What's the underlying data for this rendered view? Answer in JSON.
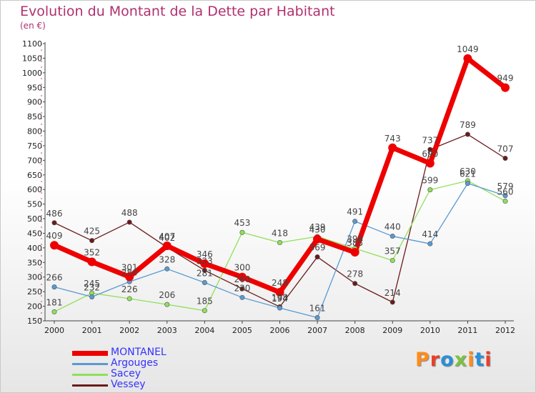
{
  "title": "Evolution du Montant de la Dette par Habitant",
  "subtitle": "(en €)",
  "logo": {
    "text": "Proxiti",
    "colors": [
      "#ff8c1a",
      "#e8402a",
      "#2a8fd8",
      "#7cc242",
      "#ff8c1a",
      "#2a8fd8",
      "#e8402a"
    ]
  },
  "chart_data": {
    "type": "line",
    "title": "Evolution du Montant de la Dette par Habitant",
    "subtitle": "(en €)",
    "xlabel": "",
    "ylabel": "",
    "x": [
      "2000",
      "2001",
      "2002",
      "2003",
      "2004",
      "2005",
      "2006",
      "2007",
      "2008",
      "2009",
      "2010",
      "2011",
      "2012"
    ],
    "ylim": [
      150,
      1100
    ],
    "yticks": [
      150,
      200,
      250,
      300,
      350,
      400,
      450,
      500,
      550,
      600,
      650,
      700,
      750,
      800,
      850,
      900,
      950,
      1000,
      1050,
      1100
    ],
    "grid": false,
    "legend_position": "bottom-left",
    "series": [
      {
        "name": "Vessey",
        "color": "#6b1a1a",
        "values": [
          486,
          425,
          488,
          402,
          323,
          260,
          198,
          369,
          278,
          214,
          737,
          789,
          707
        ]
      },
      {
        "name": "Sacey",
        "color": "#8fe05a",
        "values": [
          181,
          245,
          226,
          206,
          185,
          453,
          418,
          439,
          398,
          357,
          599,
          630,
          560
        ]
      },
      {
        "name": "Argouges",
        "color": "#5a9ad0",
        "values": [
          266,
          232,
          284,
          328,
          281,
          230,
          194,
          161,
          491,
          440,
          414,
          621,
          579
        ]
      },
      {
        "name": "MONTANEL",
        "color": "#ee0000",
        "values": [
          409,
          352,
          301,
          407,
          346,
          300,
          248,
          430,
          385,
          743,
          690,
          1049,
          949
        ]
      }
    ]
  },
  "legend": [
    {
      "name": "MONTANEL",
      "color": "#ee0000",
      "text_color": "#3333ff"
    },
    {
      "name": "Argouges",
      "color": "#5a9ad0",
      "text_color": "#3333ff"
    },
    {
      "name": "Sacey",
      "color": "#8fe05a",
      "text_color": "#3333ff"
    },
    {
      "name": "Vessey",
      "color": "#6b1a1a",
      "text_color": "#3333ff"
    }
  ]
}
